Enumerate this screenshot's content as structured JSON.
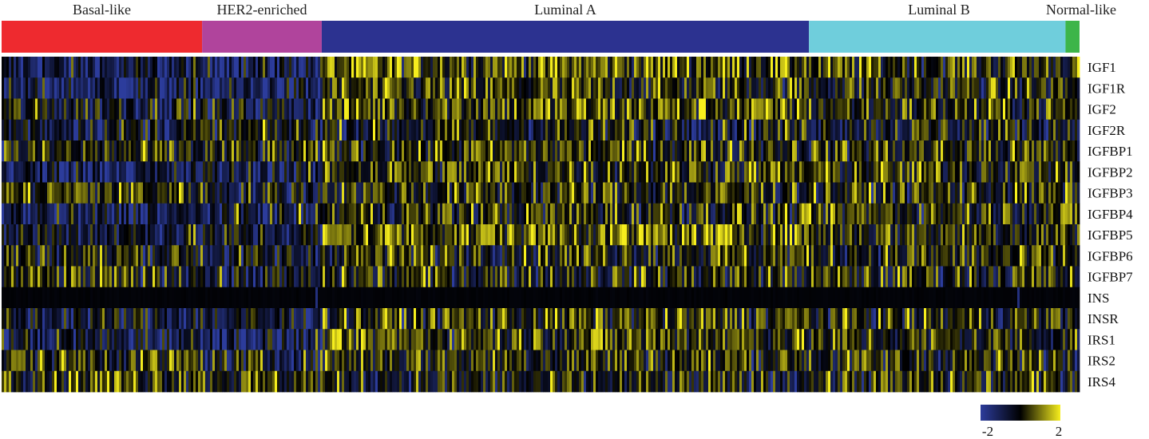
{
  "chart_data": {
    "type": "heatmap",
    "title": "",
    "xlabel": "",
    "ylabel": "",
    "groups": [
      {
        "name": "Basal-like",
        "color": "#ee2a2f",
        "fraction": 0.186
      },
      {
        "name": "HER2-enriched",
        "color": "#b0449c",
        "fraction": 0.111
      },
      {
        "name": "Luminal A",
        "color": "#2c3290",
        "fraction": 0.452
      },
      {
        "name": "Luminal B",
        "color": "#6fcedc",
        "fraction": 0.238
      },
      {
        "name": "Normal-like",
        "color": "#3db549",
        "fraction": 0.013
      }
    ],
    "genes": [
      "IGF1",
      "IGF1R",
      "IGF2",
      "IGF2R",
      "IGFBP1",
      "IGFBP2",
      "IGFBP3",
      "IGFBP4",
      "IGFBP5",
      "IGFBP6",
      "IGFBP7",
      "INS",
      "INSR",
      "IRS1",
      "IRS2",
      "IRS4"
    ],
    "mean_expression": [
      [
        -1.0,
        -0.9,
        0.7,
        0.3,
        0.4
      ],
      [
        -1.1,
        -1.2,
        0.2,
        0.1,
        0.0
      ],
      [
        -0.2,
        -0.6,
        0.6,
        0.2,
        0.1
      ],
      [
        -0.4,
        -0.2,
        -0.1,
        -0.1,
        -0.1
      ],
      [
        0.0,
        -0.1,
        0.3,
        0.2,
        0.0
      ],
      [
        -1.0,
        -0.8,
        0.4,
        0.3,
        0.2
      ],
      [
        0.4,
        -0.3,
        0.2,
        0.1,
        0.1
      ],
      [
        -1.0,
        -0.7,
        0.2,
        0.3,
        0.2
      ],
      [
        -0.4,
        -0.5,
        0.8,
        0.3,
        0.2
      ],
      [
        0.1,
        -0.5,
        0.3,
        0.1,
        0.1
      ],
      [
        0.1,
        -0.6,
        0.1,
        0.1,
        0.0
      ],
      [
        -0.1,
        -0.1,
        -0.1,
        -0.1,
        -0.1
      ],
      [
        -0.5,
        -0.6,
        0.3,
        0.1,
        0.0
      ],
      [
        -0.7,
        -1.0,
        0.5,
        0.1,
        0.0
      ],
      [
        0.3,
        -0.3,
        0.3,
        0.1,
        0.1
      ],
      [
        0.6,
        0.3,
        -0.2,
        0.1,
        0.1
      ]
    ],
    "color_scale": {
      "min": -2,
      "max": 2,
      "min_label": "-2",
      "max_label": "2",
      "low_color": "#2c3c9c",
      "mid_color": "#000000",
      "high_color": "#f6ee1d"
    }
  }
}
